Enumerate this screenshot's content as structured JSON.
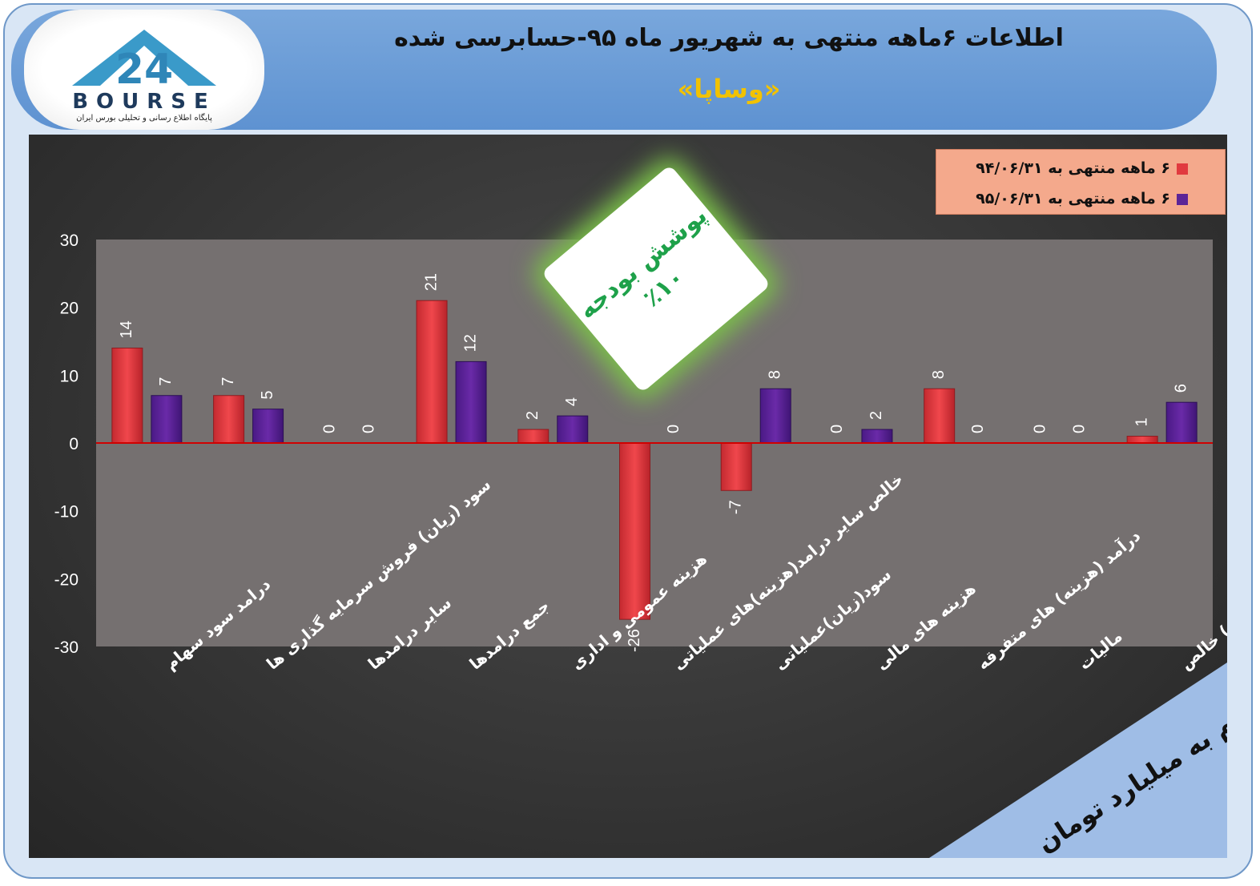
{
  "header": {
    "title": "اطلاعات ۶ماهه منتهی به شهریور ماه ۹۵-حسابرسی شده",
    "subtitle": "«وساپا»"
  },
  "logo": {
    "text": "BOURSE",
    "tagline": "پایگاه اطلاع رسانی و تحلیلی بورس ایران"
  },
  "legend": {
    "items": [
      "۶ ماهه منتهی به ۹۴/۰۶/۳۱",
      "۶ ماهه منتهی به ۹۵/۰۶/۳۱"
    ]
  },
  "callout": {
    "line1": "پوشش بودجه",
    "line2": "٪۱۰"
  },
  "unit_note": "ارقام به میلیارد تومان",
  "colors": {
    "series1": "#f0474c",
    "series2": "#6a2aa8",
    "zero_line": "#d00000",
    "plot_bg": "#757070"
  },
  "chart_data": {
    "type": "bar",
    "categories": [
      "درامد سود سهام",
      "سود (زیان) فروش سرمایه گذاری ها",
      "سایر درامدها",
      "جمع درامدها",
      "هزینه عمومی و اداری",
      "خالص سایر درامد(هزینه)های عملیاتی",
      "سود(زیان)عملیاتی",
      "هزینه های مالی",
      "درآمد (هزینه) های متفرقه",
      "مالیات",
      "سود(زیان) خالص"
    ],
    "series": [
      {
        "name": "۶ ماهه منتهی به ۹۴/۰۶/۳۱",
        "values": [
          14,
          7,
          0,
          21,
          2,
          -26,
          -7,
          0,
          8,
          0,
          1
        ]
      },
      {
        "name": "۶ ماهه منتهی به ۹۵/۰۶/۳۱",
        "values": [
          7,
          5,
          0,
          12,
          4,
          0,
          8,
          2,
          0,
          0,
          6
        ]
      }
    ],
    "ylim": [
      -30,
      30
    ],
    "yticks": [
      30,
      20,
      10,
      0,
      -10,
      -20,
      -30
    ],
    "grid": false,
    "legend_position": "top-right"
  }
}
